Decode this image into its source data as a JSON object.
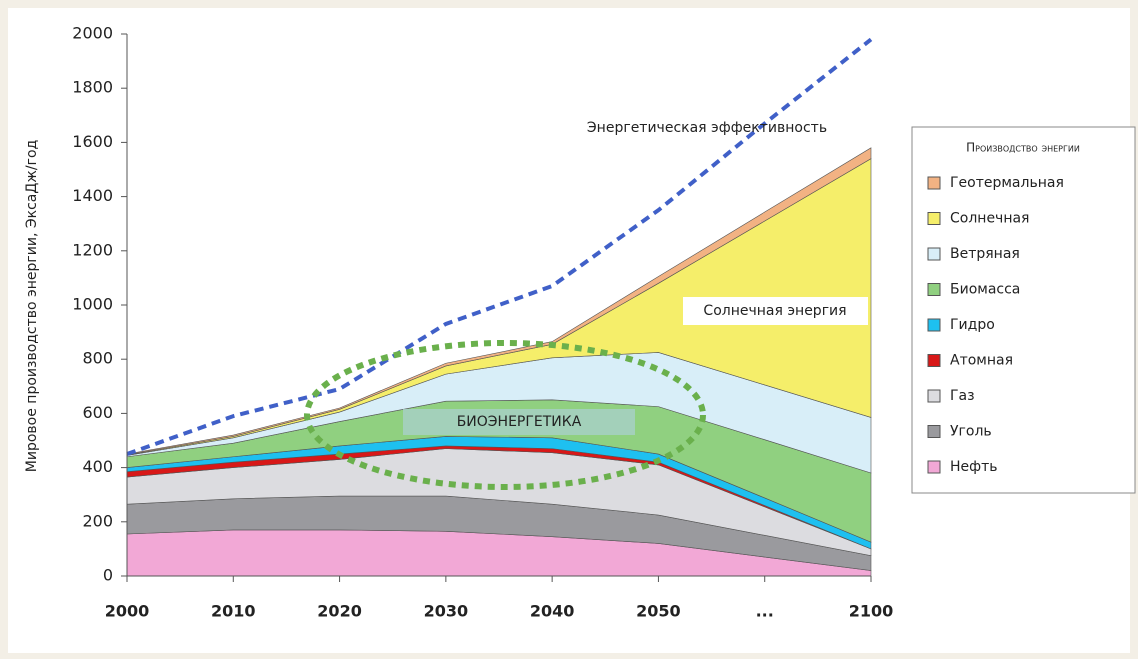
{
  "chart_data": {
    "type": "stacked_area",
    "y_label": "Мировое производство энергии, ЭксаДж/год",
    "categories": [
      "2000",
      "2010",
      "2020",
      "2030",
      "2040",
      "2050",
      "...",
      "2100"
    ],
    "ylim": [
      0,
      2000
    ],
    "yticks": [
      0,
      200,
      400,
      600,
      800,
      1000,
      1200,
      1400,
      1600,
      1800,
      2000
    ],
    "legend_title": "Производство энергии",
    "legend": "right",
    "series": [
      {
        "name": "Нефть",
        "color": "#f2a8d6",
        "values": [
          155,
          170,
          170,
          165,
          145,
          120,
          70,
          20
        ]
      },
      {
        "name": "Уголь",
        "color": "#9a9a9e",
        "values": [
          110,
          115,
          125,
          130,
          120,
          105,
          80,
          55
        ]
      },
      {
        "name": "Газ",
        "color": "#dcdce0",
        "values": [
          100,
          115,
          135,
          175,
          190,
          185,
          105,
          25
        ]
      },
      {
        "name": "Атомная",
        "color": "#d81818",
        "values": [
          20,
          20,
          20,
          10,
          15,
          10,
          5,
          0
        ]
      },
      {
        "name": "Гидро",
        "color": "#1ec0f0",
        "values": [
          15,
          20,
          30,
          35,
          40,
          30,
          28,
          25
        ]
      },
      {
        "name": "Биомасса",
        "color": "#90d080",
        "values": [
          40,
          50,
          90,
          130,
          140,
          175,
          215,
          255
        ]
      },
      {
        "name": "Ветряная",
        "color": "#d8eef8",
        "values": [
          5,
          20,
          35,
          100,
          155,
          200,
          202,
          205
        ]
      },
      {
        "name": "Солнечная",
        "color": "#f5ee6a",
        "values": [
          2,
          5,
          10,
          30,
          50,
          255,
          605,
          955
        ]
      },
      {
        "name": "Геотермальная",
        "color": "#f2b283",
        "values": [
          3,
          5,
          5,
          10,
          10,
          25,
          33,
          40
        ]
      }
    ],
    "dashed_line": {
      "color": "#4060c8",
      "values": [
        450,
        590,
        690,
        930,
        1070,
        1350,
        1670,
        1980
      ]
    },
    "annotations": [
      "Энергетическая эффективность",
      "Солнечная энергия",
      "БИОЭНЕРГЕТИКА"
    ]
  }
}
